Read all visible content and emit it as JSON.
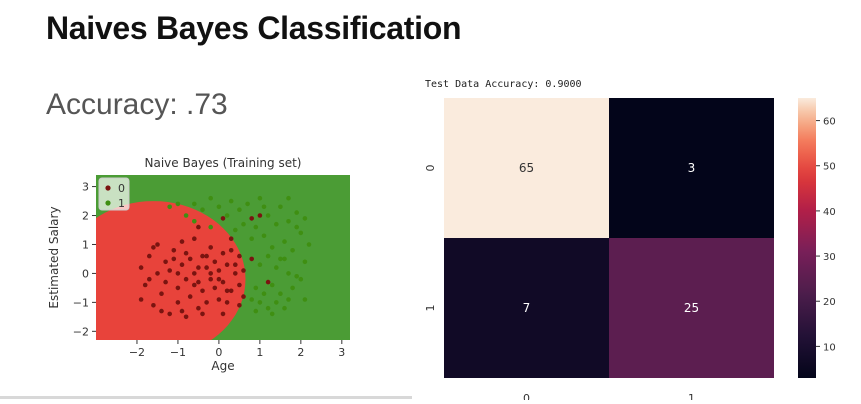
{
  "page": {
    "title": "Naives Bayes Classification",
    "accuracy_text": "Accuracy: .73"
  },
  "colors": {
    "region_0": "#e8433b",
    "region_1": "#4b9c35",
    "point_0": "#7a1410",
    "point_1": "#3f8f12"
  },
  "chart_data": [
    {
      "type": "scatter",
      "title": "Naive Bayes (Training set)",
      "xlabel": "Age",
      "ylabel": "Estimated Salary",
      "xlim": [
        -3,
        3.2
      ],
      "ylim": [
        -2.3,
        3.4
      ],
      "xticks": [
        "−2",
        "−1",
        "0",
        "1",
        "2",
        "3"
      ],
      "xtick_values": [
        -2,
        -1,
        0,
        1,
        2,
        3
      ],
      "yticks": [
        "−2",
        "−1",
        "0",
        "1",
        "2",
        "3"
      ],
      "ytick_values": [
        -2,
        -1,
        0,
        1,
        2,
        3
      ],
      "legend": {
        "placement": "top-left",
        "entries": [
          "0",
          "1"
        ]
      },
      "background": "decision regions: class 0 red, class 1 green",
      "series": [
        {
          "name": "0",
          "points": [
            [
              -1.9,
              0.2
            ],
            [
              -1.8,
              -0.4
            ],
            [
              -1.7,
              0.6
            ],
            [
              -1.6,
              -1.1
            ],
            [
              -1.5,
              0.0
            ],
            [
              -1.5,
              1.0
            ],
            [
              -1.4,
              -0.7
            ],
            [
              -1.3,
              0.4
            ],
            [
              -1.2,
              -1.4
            ],
            [
              -1.2,
              0.1
            ],
            [
              -1.1,
              0.8
            ],
            [
              -1.0,
              -0.5
            ],
            [
              -1.0,
              -1.0
            ],
            [
              -0.9,
              0.3
            ],
            [
              -0.9,
              1.1
            ],
            [
              -0.8,
              -0.2
            ],
            [
              -0.8,
              -1.5
            ],
            [
              -0.7,
              0.5
            ],
            [
              -0.7,
              -0.8
            ],
            [
              -0.6,
              0.0
            ],
            [
              -0.6,
              1.2
            ],
            [
              -0.5,
              -0.3
            ],
            [
              -0.5,
              -1.2
            ],
            [
              -0.4,
              0.6
            ],
            [
              -0.4,
              -0.6
            ],
            [
              -0.3,
              0.2
            ],
            [
              -0.3,
              -1.0
            ],
            [
              -0.2,
              0.9
            ],
            [
              -0.2,
              -0.2
            ],
            [
              -0.1,
              -0.5
            ],
            [
              -0.1,
              0.4
            ],
            [
              0.0,
              -0.9
            ],
            [
              0.0,
              0.1
            ],
            [
              0.1,
              0.7
            ],
            [
              0.1,
              -0.3
            ],
            [
              0.2,
              -1.0
            ],
            [
              0.2,
              0.3
            ],
            [
              0.3,
              -0.6
            ],
            [
              0.3,
              1.2
            ],
            [
              0.4,
              0.0
            ],
            [
              0.5,
              -0.4
            ],
            [
              0.5,
              0.6
            ],
            [
              0.6,
              -0.8
            ],
            [
              -1.6,
              0.9
            ],
            [
              -1.3,
              -0.3
            ],
            [
              -1.1,
              0.5
            ],
            [
              -0.8,
              0.7
            ],
            [
              -0.5,
              0.2
            ],
            [
              -0.3,
              0.6
            ],
            [
              0.0,
              -0.2
            ],
            [
              0.2,
              -0.6
            ],
            [
              0.4,
              0.3
            ],
            [
              -1.9,
              -0.9
            ],
            [
              -1.4,
              -1.3
            ],
            [
              -0.9,
              -1.3
            ],
            [
              -0.4,
              -1.4
            ],
            [
              0.1,
              -1.4
            ],
            [
              0.6,
              0.1
            ],
            [
              0.8,
              0.5
            ],
            [
              1.0,
              2.0
            ],
            [
              0.8,
              1.9
            ],
            [
              0.1,
              1.9
            ],
            [
              -0.5,
              1.6
            ],
            [
              1.2,
              -0.3
            ],
            [
              -1.7,
              -0.2
            ],
            [
              -1.0,
              0.0
            ],
            [
              -0.6,
              -0.4
            ],
            [
              -0.2,
              0.0
            ],
            [
              0.3,
              0.8
            ],
            [
              0.5,
              -1.1
            ]
          ]
        },
        {
          "name": "1",
          "points": [
            [
              -1.0,
              2.4
            ],
            [
              -0.8,
              2.0
            ],
            [
              -0.6,
              1.8
            ],
            [
              -0.4,
              2.2
            ],
            [
              -0.2,
              2.6
            ],
            [
              0.0,
              2.3
            ],
            [
              0.2,
              2.0
            ],
            [
              0.3,
              2.5
            ],
            [
              0.5,
              2.2
            ],
            [
              0.6,
              1.7
            ],
            [
              0.7,
              2.4
            ],
            [
              0.9,
              1.6
            ],
            [
              1.0,
              2.6
            ],
            [
              1.1,
              1.3
            ],
            [
              1.2,
              2.0
            ],
            [
              1.3,
              0.9
            ],
            [
              1.4,
              1.7
            ],
            [
              1.5,
              0.5
            ],
            [
              1.5,
              2.3
            ],
            [
              1.6,
              1.1
            ],
            [
              1.7,
              0.0
            ],
            [
              1.7,
              1.8
            ],
            [
              1.8,
              -0.5
            ],
            [
              1.8,
              0.8
            ],
            [
              1.9,
              2.1
            ],
            [
              2.0,
              -0.2
            ],
            [
              2.0,
              1.4
            ],
            [
              2.1,
              0.4
            ],
            [
              2.1,
              -0.9
            ],
            [
              2.2,
              1.0
            ],
            [
              0.8,
              -0.9
            ],
            [
              0.9,
              -0.5
            ],
            [
              1.0,
              -1.0
            ],
            [
              1.1,
              -0.7
            ],
            [
              1.2,
              -1.2
            ],
            [
              1.3,
              -0.4
            ],
            [
              1.4,
              -1.0
            ],
            [
              1.5,
              -0.7
            ],
            [
              1.6,
              -1.2
            ],
            [
              1.7,
              -0.9
            ],
            [
              1.0,
              0.3
            ],
            [
              1.2,
              0.6
            ],
            [
              1.4,
              0.2
            ],
            [
              1.6,
              0.5
            ],
            [
              1.9,
              -0.1
            ],
            [
              0.8,
              1.2
            ],
            [
              -0.2,
              1.6
            ],
            [
              0.4,
              1.5
            ],
            [
              1.1,
              2.3
            ],
            [
              1.9,
              1.6
            ],
            [
              0.9,
              -1.3
            ],
            [
              1.3,
              -1.4
            ],
            [
              -0.6,
              2.4
            ],
            [
              -1.2,
              2.3
            ],
            [
              1.7,
              2.6
            ],
            [
              2.1,
              1.9
            ]
          ]
        }
      ]
    },
    {
      "type": "heatmap",
      "title": "Test Data Accuracy: 0.9000",
      "xticks": [
        "0",
        "1"
      ],
      "yticks": [
        "0",
        "1"
      ],
      "matrix": [
        [
          65,
          3
        ],
        [
          7,
          25
        ]
      ],
      "colorbar": {
        "min": 3,
        "max": 65,
        "ticks": [
          10,
          20,
          30,
          40,
          50,
          60
        ]
      }
    }
  ]
}
